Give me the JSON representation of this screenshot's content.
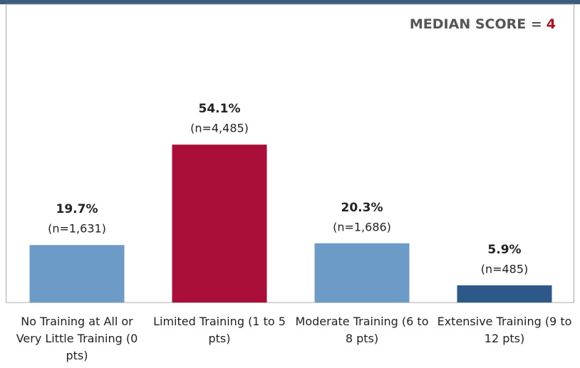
{
  "chart_data": {
    "type": "bar",
    "annotation": "MEDIAN SCORE =",
    "annotation_value": 4,
    "categories": [
      "No Training at All or Very Little Training (0 pts)",
      "Limited Training (1 to 5 pts)",
      "Moderate Training (6 to 8 pts)",
      "Extensive Training (9 to 12 pts)"
    ],
    "values": [
      19.7,
      54.1,
      20.3,
      5.9
    ],
    "value_labels": [
      "19.7%",
      "54.1%",
      "20.3%",
      "5.9%"
    ],
    "counts": [
      1631,
      4485,
      1686,
      485
    ],
    "count_labels": [
      "(n=1,631)",
      "(n=4,485)",
      "(n=1,686)",
      "(n=485)"
    ],
    "colors": [
      "#6b9bc6",
      "#a80e38",
      "#6b9bc6",
      "#2c5987"
    ],
    "annotation_color": "#b01020"
  }
}
